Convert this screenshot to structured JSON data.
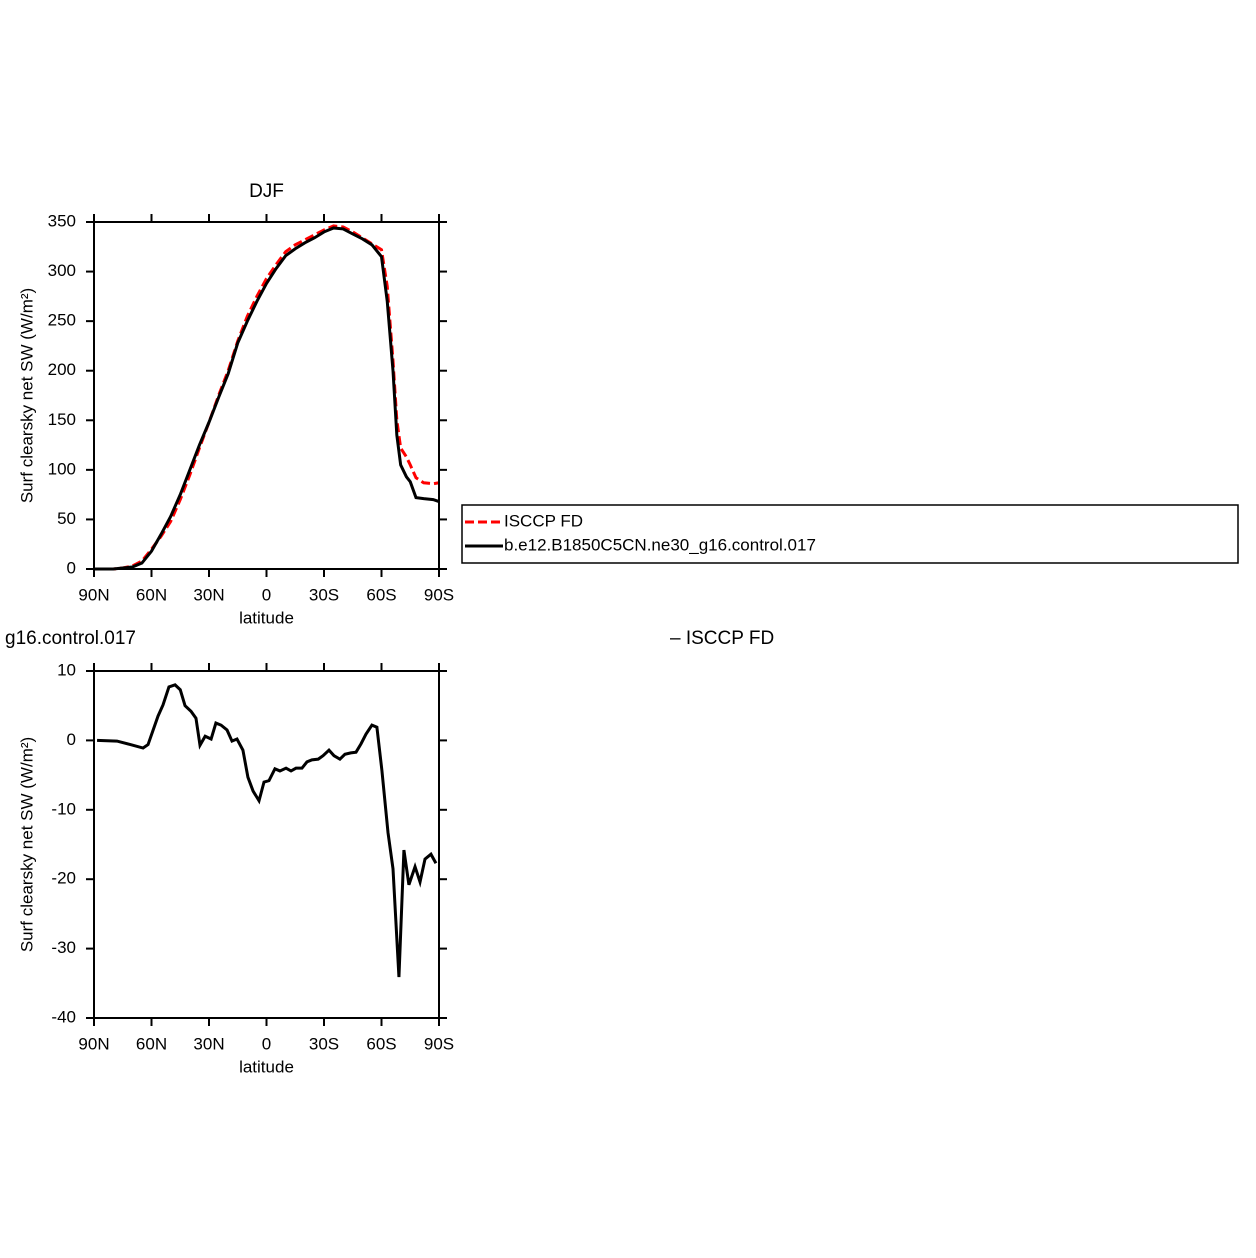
{
  "chart_data": [
    {
      "type": "line",
      "title": "DJF",
      "xlabel": "latitude",
      "ylabel": "Surf clearsky net SW (W/m²)",
      "x": [
        90,
        85,
        80,
        75,
        70,
        65,
        60,
        55,
        50,
        45,
        40,
        35,
        30,
        25,
        20,
        15,
        10,
        5,
        0,
        -5,
        -10,
        -15,
        -20,
        -25,
        -30,
        -35,
        -40,
        -45,
        -50,
        -55,
        -60,
        -63,
        -66,
        -68,
        -70,
        -73,
        -75,
        -78,
        -82,
        -87,
        -90
      ],
      "series": [
        {
          "name": "ISCCP FD",
          "color": "#ff0000",
          "dash": true,
          "values": [
            0,
            0,
            0,
            1,
            3,
            8,
            20,
            33,
            48,
            70,
            95,
            122,
            148,
            175,
            200,
            230,
            255,
            275,
            293,
            307,
            320,
            327,
            332,
            337,
            342,
            346,
            345,
            340,
            334,
            328,
            322,
            285,
            210,
            150,
            122,
            113,
            105,
            92,
            87,
            86,
            87
          ]
        },
        {
          "name": "b.e12.B1850C5CN.ne30_g16.control.017",
          "color": "#000000",
          "dash": false,
          "values": [
            0,
            0,
            0,
            1,
            2,
            6,
            18,
            35,
            53,
            75,
            100,
            125,
            148,
            173,
            197,
            228,
            250,
            270,
            288,
            303,
            316,
            323,
            329,
            334,
            340,
            344,
            343,
            338,
            333,
            327,
            315,
            270,
            200,
            135,
            105,
            93,
            88,
            72,
            71,
            70,
            68
          ]
        }
      ],
      "xlim": [
        90,
        -90
      ],
      "xticks": [
        {
          "value": 90,
          "label": "90N"
        },
        {
          "value": 60,
          "label": "60N"
        },
        {
          "value": 30,
          "label": "30N"
        },
        0,
        {
          "value": -30,
          "label": "30S"
        },
        {
          "value": -60,
          "label": "60S"
        },
        {
          "value": -90,
          "label": "90S"
        }
      ],
      "ylim": [
        0,
        350
      ],
      "yticks": [
        0,
        50,
        100,
        150,
        200,
        250,
        300,
        350
      ],
      "legend": "right"
    },
    {
      "type": "line",
      "title": "g16.control.017",
      "annotation": "– ISCCP FD",
      "xlabel": "latitude",
      "ylabel": "Surf clearsky net SW (W/m²)",
      "x": [
        88.4,
        78,
        71,
        64.4,
        61.8,
        56.6,
        54,
        50.9,
        47.7,
        45,
        42.5,
        39.4,
        36.8,
        34.7,
        32,
        28.9,
        26.4,
        23.7,
        20.6,
        18,
        15.4,
        12.3,
        9.7,
        7,
        3.9,
        1.3,
        -1.3,
        -4.4,
        -7,
        -10.2,
        -12.8,
        -15.4,
        -18.5,
        -21.1,
        -23.7,
        -27,
        -29.5,
        -32.6,
        -35.2,
        -38.3,
        -40.9,
        -44,
        -46.7,
        -49.3,
        -51.9,
        -55,
        -57.6,
        -60.2,
        -63.4,
        -66,
        -69.1,
        -71.7,
        -74.3,
        -77.5,
        -80.1,
        -82.7,
        -85.8,
        -88.4
      ],
      "series": [
        {
          "color": "#000000",
          "dash": false,
          "values": [
            0,
            -0.1,
            -0.6,
            -1.1,
            -0.6,
            3.5,
            5.1,
            7.7,
            8,
            7.3,
            5,
            4.2,
            3.2,
            -0.7,
            0.6,
            0.2,
            2.5,
            2.2,
            1.5,
            -0.1,
            0.2,
            -1.4,
            -5.3,
            -7.3,
            -8.7,
            -6,
            -5.8,
            -4.1,
            -4.4,
            -4,
            -4.4,
            -4,
            -4,
            -3.1,
            -2.8,
            -2.7,
            -2.2,
            -1.4,
            -2.2,
            -2.7,
            -2,
            -1.8,
            -1.7,
            -0.5,
            0.9,
            2.2,
            1.9,
            -4.3,
            -13.3,
            -18.5,
            -34.1,
            -15.8,
            -20.8,
            -18.2,
            -20.4,
            -17.1,
            -16.4,
            -17.7
          ]
        }
      ],
      "xlim": [
        90,
        -90
      ],
      "xticks": [
        {
          "value": 90,
          "label": "90N"
        },
        {
          "value": 60,
          "label": "60N"
        },
        {
          "value": 30,
          "label": "30N"
        },
        0,
        {
          "value": -30,
          "label": "30S"
        },
        {
          "value": -60,
          "label": "60S"
        },
        {
          "value": -90,
          "label": "90S"
        }
      ],
      "ylim": [
        -40,
        10
      ],
      "yticks": [
        -40,
        -30,
        -20,
        -10,
        0,
        10
      ]
    }
  ]
}
